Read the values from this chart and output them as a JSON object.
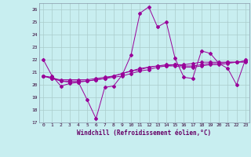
{
  "title": "",
  "xlabel": "Windchill (Refroidissement éolien,°C)",
  "ylabel": "",
  "background_color": "#c8eef0",
  "line_color": "#990099",
  "grid_color": "#aacccc",
  "xlim": [
    -0.5,
    23.5
  ],
  "ylim": [
    17,
    26.5
  ],
  "yticks": [
    17,
    18,
    19,
    20,
    21,
    22,
    23,
    24,
    25,
    26
  ],
  "xticks": [
    0,
    1,
    2,
    3,
    4,
    5,
    6,
    7,
    8,
    9,
    10,
    11,
    12,
    13,
    14,
    15,
    16,
    17,
    18,
    19,
    20,
    21,
    22,
    23
  ],
  "series1": [
    22.0,
    20.7,
    19.9,
    20.1,
    20.2,
    18.8,
    17.3,
    19.8,
    19.9,
    20.8,
    22.4,
    25.7,
    26.2,
    24.6,
    25.0,
    22.1,
    20.6,
    20.5,
    22.7,
    22.5,
    21.7,
    21.3,
    20.0,
    22.0
  ],
  "series2": [
    20.7,
    20.6,
    20.3,
    20.2,
    20.2,
    20.3,
    20.4,
    20.5,
    20.6,
    20.7,
    20.9,
    21.1,
    21.2,
    21.4,
    21.5,
    21.6,
    21.6,
    21.7,
    21.8,
    21.8,
    21.8,
    21.8,
    21.8,
    21.8
  ],
  "series3": [
    20.7,
    20.5,
    20.3,
    20.3,
    20.3,
    20.3,
    20.4,
    20.5,
    20.7,
    20.9,
    21.1,
    21.2,
    21.4,
    21.5,
    21.5,
    21.5,
    21.4,
    21.4,
    21.5,
    21.6,
    21.6,
    21.7,
    21.8,
    21.9
  ],
  "series4": [
    20.7,
    20.5,
    20.4,
    20.4,
    20.4,
    20.4,
    20.5,
    20.6,
    20.7,
    20.9,
    21.1,
    21.3,
    21.4,
    21.5,
    21.6,
    21.6,
    21.5,
    21.5,
    21.6,
    21.7,
    21.7,
    21.8,
    21.8,
    21.9
  ]
}
